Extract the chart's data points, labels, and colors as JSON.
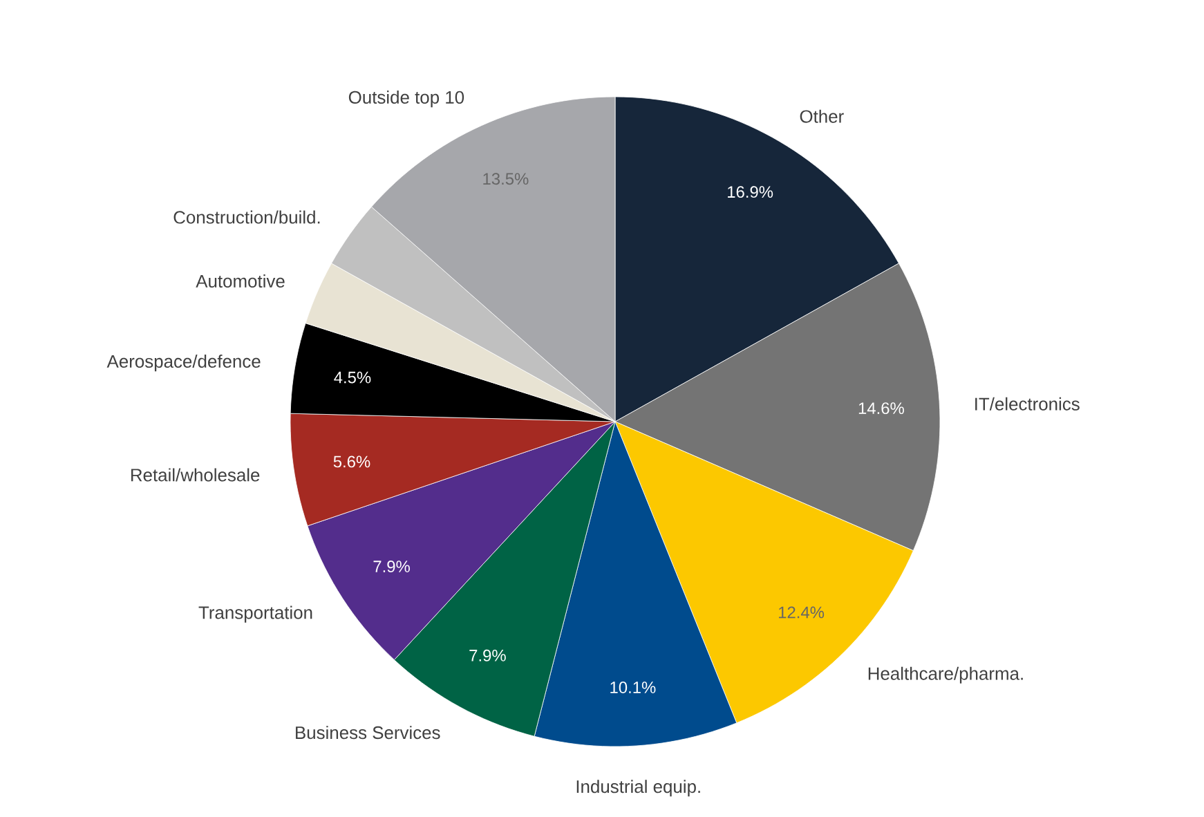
{
  "chart_data": {
    "type": "pie",
    "categories": [
      "Other",
      "IT/electronics",
      "Healthcare/pharma.",
      "Industrial equip.",
      "Business Services",
      "Transportation",
      "Retail/wholesale",
      "Aerospace/defence",
      "Automotive",
      "Construction/build.",
      "Outside top 10"
    ],
    "values": [
      16.9,
      14.6,
      12.4,
      10.1,
      7.9,
      7.9,
      5.6,
      4.5,
      3.2,
      3.4,
      13.5
    ],
    "value_labels": [
      "16.9%",
      "14.6%",
      "12.4%",
      "10.1%",
      "7.9%",
      "7.9%",
      "5.6%",
      "4.5%",
      null,
      null,
      "13.5%"
    ],
    "colors": [
      "#16263a",
      "#747474",
      "#fcc800",
      "#004b8d",
      "#006345",
      "#532d8c",
      "#a52a22",
      "#000000",
      "#e8e3d3",
      "#c0c0c0",
      "#a6a7ab"
    ]
  }
}
